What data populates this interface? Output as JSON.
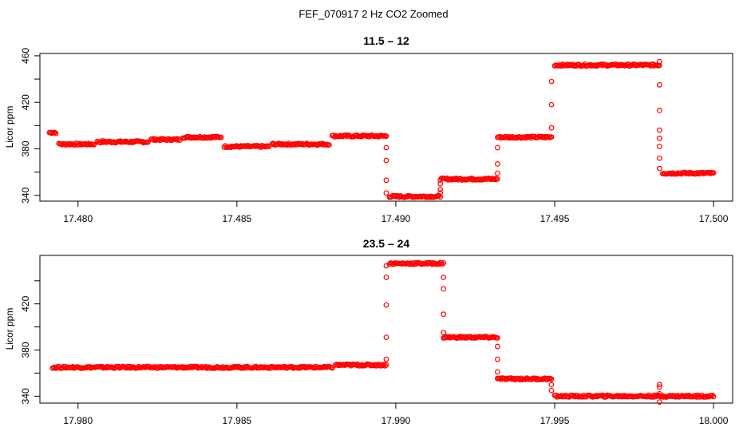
{
  "figure": {
    "suptitle": "FEF_070917  2 Hz CO2 Zoomed"
  },
  "chart_data": [
    {
      "type": "scatter",
      "title": "11.5 – 12",
      "xlabel": "",
      "ylabel": "Licor ppm",
      "xlim": [
        17.4788,
        17.5006
      ],
      "ylim": [
        335,
        462
      ],
      "x_ticks": [
        17.48,
        17.485,
        17.49,
        17.495,
        17.5
      ],
      "x_tick_labels": [
        "17.480",
        "17.485",
        "17.490",
        "17.495",
        "17.500"
      ],
      "y_ticks": [
        340,
        360,
        380,
        400,
        420,
        440,
        460
      ],
      "y_tick_labels": [
        "340",
        "",
        "380",
        "",
        "420",
        "",
        "460"
      ],
      "grid": false,
      "marker": "open-circle",
      "color": "#ff0000",
      "levels": [
        {
          "x_start": 17.4791,
          "x_end": 17.4793,
          "y": 394
        },
        {
          "x_start": 17.4794,
          "x_end": 17.4805,
          "y": 384
        },
        {
          "x_start": 17.4806,
          "x_end": 17.4822,
          "y": 386
        },
        {
          "x_start": 17.4823,
          "x_end": 17.4832,
          "y": 388
        },
        {
          "x_start": 17.4833,
          "x_end": 17.4845,
          "y": 390
        },
        {
          "x_start": 17.4846,
          "x_end": 17.486,
          "y": 382
        },
        {
          "x_start": 17.4861,
          "x_end": 17.4879,
          "y": 384
        },
        {
          "x_start": 17.488,
          "x_end": 17.4897,
          "y": 391
        },
        {
          "x_start": 17.4898,
          "x_end": 17.4914,
          "y": 339
        },
        {
          "x_start": 17.4914,
          "x_end": 17.4932,
          "y": 354
        },
        {
          "x_start": 17.4932,
          "x_end": 17.4949,
          "y": 390
        },
        {
          "x_start": 17.495,
          "x_end": 17.4983,
          "y": 452
        },
        {
          "x_start": 17.4984,
          "x_end": 17.5,
          "y": 359
        }
      ],
      "transitions": [
        {
          "x": 17.4897,
          "y": [
            381,
            370,
            353,
            342
          ]
        },
        {
          "x": 17.4914,
          "y": [
            342,
            345,
            350
          ]
        },
        {
          "x": 17.4932,
          "y": [
            359,
            367,
            381
          ]
        },
        {
          "x": 17.4949,
          "y": [
            398,
            418,
            438
          ]
        },
        {
          "x": 17.4983,
          "y": [
            455,
            435,
            413,
            396,
            389,
            382,
            372,
            363
          ]
        }
      ]
    },
    {
      "type": "scatter",
      "title": "23.5 – 24",
      "xlabel": "",
      "ylabel": "Licor ppm",
      "xlim": [
        17.9788,
        18.0006
      ],
      "ylim": [
        334,
        462
      ],
      "x_ticks": [
        17.98,
        17.985,
        17.99,
        17.995,
        18.0
      ],
      "x_tick_labels": [
        "17.980",
        "17.985",
        "17.990",
        "17.995",
        "18.000"
      ],
      "y_ticks": [
        340,
        360,
        380,
        400,
        420,
        440
      ],
      "y_tick_labels": [
        "340",
        "",
        "380",
        "",
        "420",
        ""
      ],
      "grid": false,
      "marker": "open-circle",
      "color": "#ff0000",
      "levels": [
        {
          "x_start": 17.9792,
          "x_end": 17.988,
          "y": 365
        },
        {
          "x_start": 17.9881,
          "x_end": 17.9897,
          "y": 367
        },
        {
          "x_start": 17.9898,
          "x_end": 17.9915,
          "y": 455
        },
        {
          "x_start": 17.9915,
          "x_end": 17.9932,
          "y": 391
        },
        {
          "x_start": 17.9932,
          "x_end": 17.9949,
          "y": 355
        },
        {
          "x_start": 17.995,
          "x_end": 18.0,
          "y": 340
        }
      ],
      "transitions": [
        {
          "x": 17.9897,
          "y": [
            372,
            391,
            419,
            443,
            453
          ]
        },
        {
          "x": 17.9915,
          "y": [
            443,
            433,
            411,
            395
          ]
        },
        {
          "x": 17.9932,
          "y": [
            383,
            372,
            361
          ]
        },
        {
          "x": 17.9949,
          "y": [
            350,
            345
          ]
        },
        {
          "x": 17.9983,
          "y": [
            335,
            342,
            348,
            350
          ]
        }
      ]
    }
  ]
}
